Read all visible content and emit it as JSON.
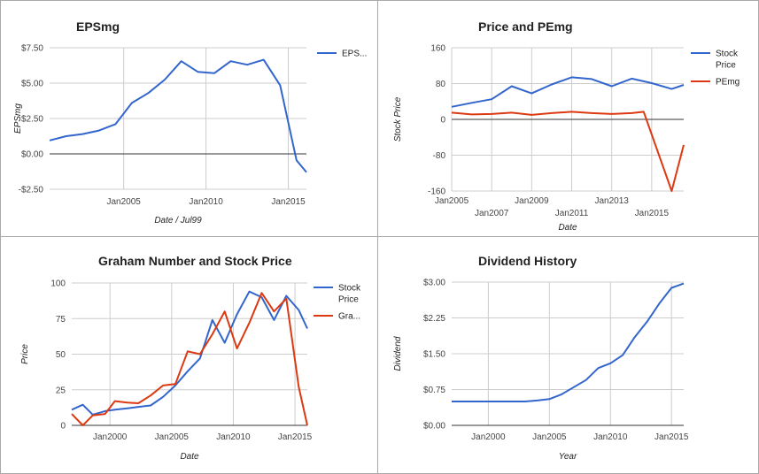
{
  "colors": {
    "stock_price": "#3366cc",
    "secondary": "#dc3912",
    "gridline": "#cccccc",
    "baseline": "#333333",
    "panel_border": "#a9a9a9"
  },
  "chart_data": [
    {
      "id": "epsmg",
      "type": "line",
      "title": "EPSmg",
      "xlabel": "Date / Jul99",
      "ylabel": "EPSmg",
      "xlim": [
        2000.5,
        2016.1
      ],
      "ylim": [
        -2.5,
        7.5
      ],
      "x_ticks": [
        {
          "value": 2005,
          "label": "Jan2005"
        },
        {
          "value": 2010,
          "label": "Jan2010"
        },
        {
          "value": 2015,
          "label": "Jan2015"
        }
      ],
      "y_ticks": [
        {
          "value": 7.5,
          "label": "$7.50"
        },
        {
          "value": 5.0,
          "label": "$5.00"
        },
        {
          "value": 2.5,
          "label": "$2.50"
        },
        {
          "value": 0,
          "label": "$0.00"
        },
        {
          "value": -2.5,
          "label": "-$2.50"
        }
      ],
      "grid": true,
      "legend": "right",
      "series": [
        {
          "name": "EPS...",
          "color": "#3366cc",
          "x": [
            2000.5,
            2001.5,
            2002.5,
            2003.5,
            2004.5,
            2005.5,
            2006.5,
            2007.5,
            2008.5,
            2009.5,
            2010.5,
            2011.5,
            2012.5,
            2013.5,
            2014.5,
            2015.5,
            2016.1
          ],
          "y": [
            0.95,
            1.25,
            1.4,
            1.65,
            2.1,
            3.6,
            4.3,
            5.25,
            6.55,
            5.8,
            5.7,
            6.55,
            6.3,
            6.65,
            4.85,
            -0.45,
            -1.3
          ]
        }
      ]
    },
    {
      "id": "price-pemg",
      "type": "line",
      "title": "Price and PEmg",
      "xlabel": "Date",
      "ylabel": "Stock Price",
      "xlim": [
        2005,
        2016.6
      ],
      "ylim": [
        -160,
        160
      ],
      "x_ticks": [
        {
          "value": 2005,
          "label": "Jan2005"
        },
        {
          "value": 2007,
          "label": "Jan2007"
        },
        {
          "value": 2009,
          "label": "Jan2009"
        },
        {
          "value": 2011,
          "label": "Jan2011"
        },
        {
          "value": 2013,
          "label": "Jan2013"
        },
        {
          "value": 2015,
          "label": "Jan2015"
        }
      ],
      "y_ticks": [
        {
          "value": 160,
          "label": "160"
        },
        {
          "value": 80,
          "label": "80"
        },
        {
          "value": 0,
          "label": "0"
        },
        {
          "value": -80,
          "label": "-80"
        },
        {
          "value": -160,
          "label": "-160"
        }
      ],
      "grid": true,
      "legend": "right",
      "series": [
        {
          "name": "Stock Price",
          "color": "#3366cc",
          "x": [
            2005,
            2006,
            2007,
            2008,
            2009,
            2010,
            2011,
            2012,
            2013,
            2014,
            2015,
            2016,
            2016.6
          ],
          "y": [
            28,
            37,
            45,
            74,
            58,
            78,
            94,
            90,
            74,
            91,
            81,
            68,
            77
          ]
        },
        {
          "name": "PEmg",
          "color": "#dc3912",
          "x": [
            2005,
            2006,
            2007,
            2008,
            2009,
            2010,
            2011,
            2012,
            2013,
            2014,
            2014.6,
            2016,
            2016.6
          ],
          "y": [
            15,
            11,
            12,
            15,
            10,
            14,
            17,
            14,
            12,
            14,
            17,
            -160,
            -57
          ]
        }
      ]
    },
    {
      "id": "graham",
      "type": "line",
      "title": "Graham Number and Stock Price",
      "xlabel": "Date",
      "ylabel": "Price",
      "xlim": [
        1996.9,
        2016
      ],
      "ylim": [
        0,
        100
      ],
      "x_ticks": [
        {
          "value": 2000,
          "label": "Jan2000"
        },
        {
          "value": 2005,
          "label": "Jan2005"
        },
        {
          "value": 2010,
          "label": "Jan2010"
        },
        {
          "value": 2015,
          "label": "Jan2015"
        }
      ],
      "y_ticks": [
        {
          "value": 100,
          "label": "100"
        },
        {
          "value": 75,
          "label": "75"
        },
        {
          "value": 50,
          "label": "50"
        },
        {
          "value": 25,
          "label": "25"
        },
        {
          "value": 0,
          "label": "0"
        }
      ],
      "grid": true,
      "legend": "right",
      "series": [
        {
          "name": "Stock Price",
          "color": "#3366cc",
          "x": [
            1996.9,
            1997.8,
            1998.6,
            1999.6,
            2000.4,
            2001.4,
            2002.3,
            2003.3,
            2004.3,
            2005.3,
            2006.3,
            2007.3,
            2008.3,
            2009.3,
            2010.3,
            2011.3,
            2012.3,
            2013.3,
            2014.3,
            2015.3,
            2016
          ],
          "y": [
            11,
            14.5,
            7.5,
            10,
            11,
            12,
            13,
            14,
            20,
            28,
            38,
            47,
            74,
            58,
            78,
            94,
            90,
            74,
            91,
            81,
            68
          ]
        },
        {
          "name": "Gra...",
          "color": "#dc3912",
          "x": [
            1996.9,
            1997.8,
            1998.6,
            1999.6,
            2000.4,
            2001.4,
            2002.3,
            2003.3,
            2004.3,
            2005.3,
            2006.3,
            2007.3,
            2008.3,
            2009.3,
            2010.3,
            2011.3,
            2012.3,
            2013.3,
            2014.3,
            2015.3,
            2016
          ],
          "y": [
            8,
            0,
            7,
            8,
            17,
            16,
            15.5,
            21,
            28,
            29,
            52,
            50,
            64,
            80,
            54,
            72,
            93,
            80,
            89,
            27,
            0
          ]
        }
      ]
    },
    {
      "id": "dividend",
      "type": "line",
      "title": "Dividend History",
      "xlabel": "Year",
      "ylabel": "Dividend",
      "xlim": [
        1997,
        2016
      ],
      "ylim": [
        0,
        3
      ],
      "x_ticks": [
        {
          "value": 2000,
          "label": "Jan2000"
        },
        {
          "value": 2005,
          "label": "Jan2005"
        },
        {
          "value": 2010,
          "label": "Jan2010"
        },
        {
          "value": 2015,
          "label": "Jan2015"
        }
      ],
      "y_ticks": [
        {
          "value": 3,
          "label": "$3.00"
        },
        {
          "value": 2.25,
          "label": "$2.25"
        },
        {
          "value": 1.5,
          "label": "$1.50"
        },
        {
          "value": 0.75,
          "label": "$0.75"
        },
        {
          "value": 0,
          "label": "$0.00"
        }
      ],
      "grid": true,
      "legend": "none",
      "series": [
        {
          "name": "",
          "color": "#3366cc",
          "x": [
            1997,
            1998,
            1999,
            2000,
            2001,
            2002,
            2003,
            2004,
            2005,
            2006,
            2007,
            2008,
            2009,
            2010,
            2011,
            2012,
            2013,
            2014,
            2015,
            2016
          ],
          "y": [
            0.5,
            0.5,
            0.5,
            0.5,
            0.5,
            0.5,
            0.5,
            0.52,
            0.55,
            0.65,
            0.8,
            0.95,
            1.2,
            1.3,
            1.47,
            1.85,
            2.17,
            2.55,
            2.88,
            2.97
          ]
        }
      ]
    }
  ]
}
